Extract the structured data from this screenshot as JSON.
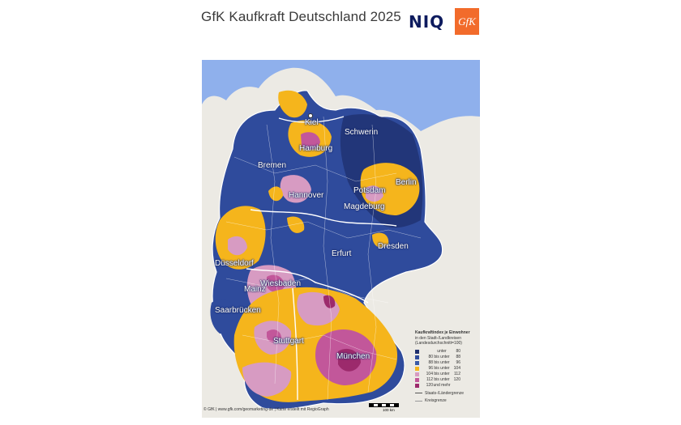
{
  "header": {
    "title": "GfK Kaufkraft Deutschland 2025",
    "logo_niq": "NIQ",
    "logo_gfk": "GfK"
  },
  "map": {
    "colors": {
      "water": "#8fb0ec",
      "land_outside": "#eceae4",
      "lt80": "#1f2f6e",
      "c80_88": "#2f4b9c",
      "c88_96": "#3a5aa6",
      "c96_104": "#f5b51c",
      "c104_112": "#d79bc2",
      "c112_120": "#c2579a",
      "gte120": "#9c2a6c"
    },
    "cities": [
      {
        "id": "kiel",
        "name": "Kiel"
      },
      {
        "id": "schwerin",
        "name": "Schwerin"
      },
      {
        "id": "hamburg",
        "name": "Hamburg"
      },
      {
        "id": "bremen",
        "name": "Bremen"
      },
      {
        "id": "berlin",
        "name": "Berlin"
      },
      {
        "id": "hannover",
        "name": "Hannover"
      },
      {
        "id": "potsdam",
        "name": "Potsdam"
      },
      {
        "id": "magdeburg",
        "name": "Magdeburg"
      },
      {
        "id": "duesseldorf",
        "name": "Düsseldorf"
      },
      {
        "id": "dresden",
        "name": "Dresden"
      },
      {
        "id": "erfurt",
        "name": "Erfurt"
      },
      {
        "id": "wiesbaden",
        "name": "Wiesbaden"
      },
      {
        "id": "mainz",
        "name": "Mainz"
      },
      {
        "id": "saarbruecken",
        "name": "Saarbrücken"
      },
      {
        "id": "stuttgart",
        "name": "Stuttgart"
      },
      {
        "id": "muenchen",
        "name": "München"
      }
    ]
  },
  "legend": {
    "title": "Kaufkraftindex je Einwohner",
    "subtitle1": "in den Stadt-/Landkreisen",
    "subtitle2": "(Landesdurchschnitt=100)",
    "rows": [
      {
        "lo": "",
        "mid": "unter",
        "hi": "80"
      },
      {
        "lo": "80",
        "mid": "bis unter",
        "hi": "88"
      },
      {
        "lo": "88",
        "mid": "bis unter",
        "hi": "96"
      },
      {
        "lo": "96",
        "mid": "bis unter",
        "hi": "104"
      },
      {
        "lo": "104",
        "mid": "bis unter",
        "hi": "112"
      },
      {
        "lo": "112",
        "mid": "bis unter",
        "hi": "120"
      },
      {
        "lo": "120",
        "mid": "und mehr",
        "hi": ""
      }
    ],
    "line_state": "Staats-/Ländergrenze",
    "line_district": "Kreisgrenze"
  },
  "footer": {
    "credit": "© GfK | www.gfk.com/geomarketing-de | Karte erstellt mit RegioGraph",
    "scale": "100 km"
  }
}
